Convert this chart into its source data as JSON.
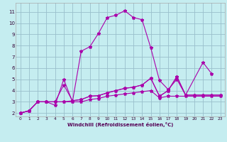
{
  "xlabel": "Windchill (Refroidissement éolien,°C)",
  "background_color": "#c5edf0",
  "grid_color": "#99bfcc",
  "line_color": "#aa00aa",
  "xlim": [
    -0.5,
    23.5
  ],
  "ylim": [
    1.7,
    11.8
  ],
  "xticks": [
    0,
    1,
    2,
    3,
    4,
    5,
    6,
    7,
    8,
    9,
    10,
    11,
    12,
    13,
    14,
    15,
    16,
    17,
    18,
    19,
    20,
    21,
    22,
    23
  ],
  "yticks": [
    2,
    3,
    4,
    5,
    6,
    7,
    8,
    9,
    10,
    11
  ],
  "series": [
    {
      "x": [
        0,
        1,
        2,
        3,
        4,
        5,
        6,
        7,
        8,
        9,
        10,
        11,
        12,
        13,
        14,
        15,
        16,
        17,
        18,
        19,
        21,
        22
      ],
      "y": [
        2.0,
        2.2,
        3.0,
        3.0,
        2.7,
        5.0,
        3.0,
        7.5,
        7.9,
        9.1,
        10.5,
        10.7,
        11.1,
        10.5,
        10.3,
        7.8,
        4.9,
        4.1,
        5.0,
        3.6,
        6.5,
        5.5
      ]
    },
    {
      "x": [
        0,
        1,
        2,
        3,
        4,
        5,
        6,
        7,
        8,
        9,
        10,
        11,
        12,
        13,
        14,
        15,
        16,
        17,
        18,
        19,
        20,
        21,
        22,
        23
      ],
      "y": [
        2.0,
        2.2,
        3.0,
        3.0,
        3.0,
        3.0,
        3.0,
        3.0,
        3.2,
        3.3,
        3.5,
        3.6,
        3.7,
        3.8,
        3.9,
        4.0,
        3.35,
        3.5,
        3.5,
        3.5,
        3.5,
        3.5,
        3.5,
        3.5
      ]
    },
    {
      "x": [
        0,
        1,
        2,
        3,
        4,
        5,
        6,
        7,
        8,
        9,
        10,
        11,
        12,
        13,
        14,
        15,
        16,
        17,
        18,
        19,
        20,
        21,
        22,
        23
      ],
      "y": [
        2.0,
        2.2,
        3.0,
        3.0,
        3.0,
        3.0,
        3.1,
        3.2,
        3.5,
        3.55,
        3.8,
        4.0,
        4.2,
        4.3,
        4.5,
        5.1,
        3.5,
        4.0,
        5.25,
        3.6,
        3.6,
        3.6,
        3.6,
        3.6
      ]
    },
    {
      "x": [
        0,
        1,
        2,
        3,
        4,
        5,
        6,
        7,
        8,
        9,
        10,
        11,
        12,
        13,
        14,
        15,
        16,
        17,
        18,
        19,
        20,
        21,
        22,
        23
      ],
      "y": [
        2.0,
        2.2,
        3.0,
        3.0,
        3.0,
        4.5,
        3.1,
        3.2,
        3.5,
        3.55,
        3.8,
        4.0,
        4.2,
        4.3,
        4.5,
        5.1,
        3.5,
        4.0,
        5.25,
        3.6,
        3.6,
        3.6,
        3.6,
        3.6
      ]
    }
  ]
}
